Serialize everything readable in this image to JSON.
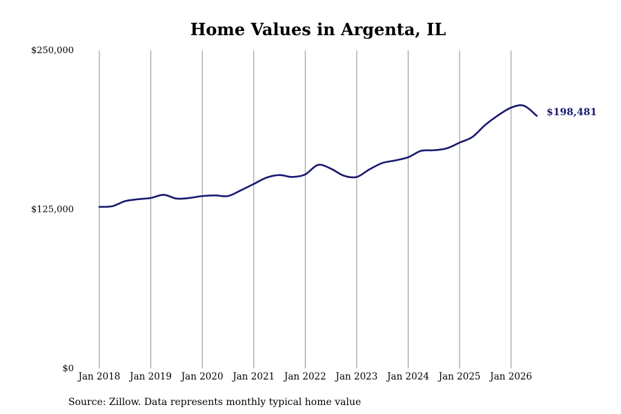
{
  "chart_data": {
    "type": "line",
    "title": "Home Values in Argenta, IL",
    "source": "Source: Zillow. Data represents monthly typical home value",
    "x_tick_labels": [
      "Jan 2018",
      "Jan 2019",
      "Jan 2020",
      "Jan 2021",
      "Jan 2022",
      "Jan 2023",
      "Jan 2024",
      "Jan 2025",
      "Jan 2026"
    ],
    "y_tick_labels": [
      "$250,000",
      "$125,000",
      "$0"
    ],
    "y_ticks": [
      250000,
      125000,
      0
    ],
    "ylim": [
      0,
      250000
    ],
    "xlim": [
      "2018-01",
      "2026-08"
    ],
    "grid": "vertical",
    "line_color": "#191970",
    "end_label": "$198,481",
    "series": [
      {
        "x": [
          "2018-01",
          "2018-04",
          "2018-07",
          "2018-10",
          "2019-01",
          "2019-04",
          "2019-07",
          "2019-10",
          "2020-01",
          "2020-04",
          "2020-07",
          "2020-10",
          "2021-01",
          "2021-04",
          "2021-07",
          "2021-10",
          "2022-01",
          "2022-04",
          "2022-07",
          "2022-10",
          "2023-01",
          "2023-04",
          "2023-07",
          "2023-10",
          "2024-01",
          "2024-04",
          "2024-07",
          "2024-10",
          "2025-01",
          "2025-04",
          "2025-07",
          "2025-10",
          "2026-01",
          "2026-04",
          "2026-07"
        ],
        "values": [
          127000,
          127500,
          131500,
          133000,
          134000,
          136500,
          133500,
          134000,
          135500,
          136000,
          135500,
          140000,
          145000,
          150000,
          152000,
          150500,
          152500,
          160000,
          157000,
          151500,
          150500,
          156500,
          161500,
          163500,
          166000,
          171000,
          171500,
          173000,
          177500,
          182000,
          191500,
          199000,
          205000,
          206500,
          198481
        ]
      }
    ]
  }
}
